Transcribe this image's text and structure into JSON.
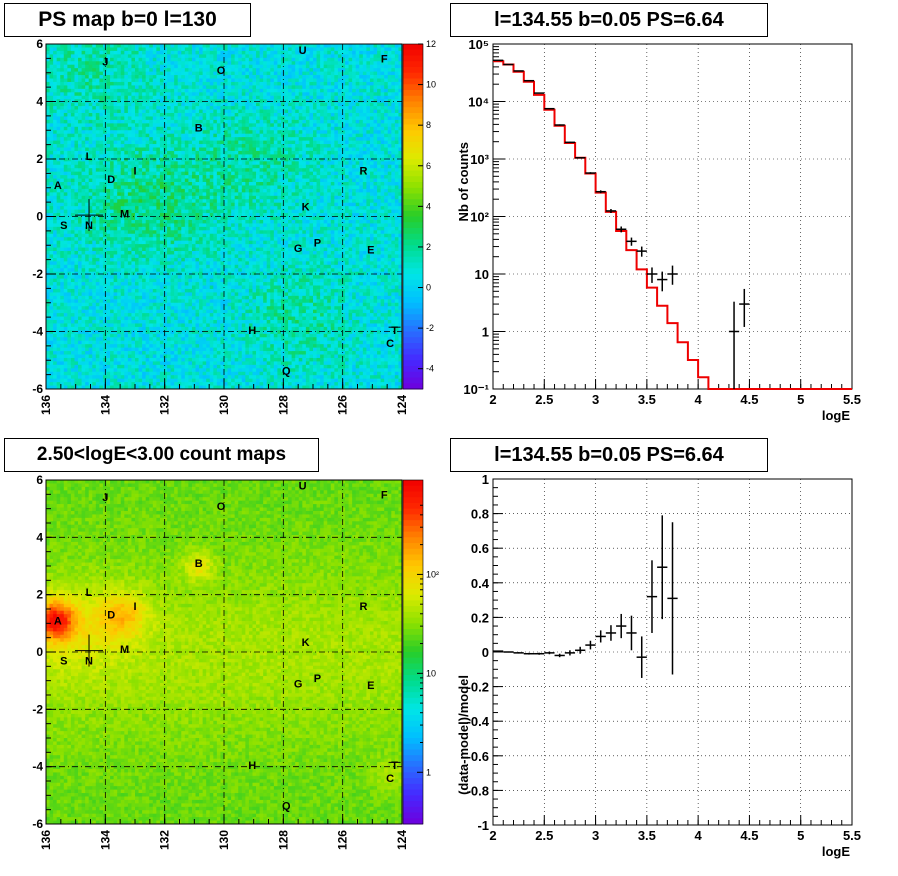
{
  "chart_data": [
    {
      "id": "ps_map",
      "type": "heatmap",
      "title": "PS map b=0 l=130",
      "x_ticks": [
        "136",
        "134",
        "132",
        "130",
        "128",
        "126",
        "124"
      ],
      "y_ticks": [
        "6",
        "4",
        "2",
        "0",
        "-2",
        "-4",
        "-6"
      ],
      "xlim": [
        136,
        124
      ],
      "ylim": [
        -6,
        6
      ],
      "colorbar_ticks": [
        "12",
        "10",
        "8",
        "6",
        "4",
        "2",
        "0",
        "-2",
        "-4"
      ],
      "colorbar_range": [
        -5,
        12
      ],
      "grid": true,
      "sources": [
        {
          "label": "J",
          "l": 134.0,
          "b": 5.4
        },
        {
          "label": "O",
          "l": 130.1,
          "b": 5.1
        },
        {
          "label": "U",
          "l": 127.35,
          "b": 5.8
        },
        {
          "label": "F",
          "l": 124.6,
          "b": 5.5
        },
        {
          "label": "B",
          "l": 130.85,
          "b": 3.1
        },
        {
          "label": "L",
          "l": 134.55,
          "b": 2.1
        },
        {
          "label": "R",
          "l": 125.3,
          "b": 1.6
        },
        {
          "label": "A",
          "l": 135.6,
          "b": 1.1
        },
        {
          "label": "D",
          "l": 133.8,
          "b": 1.3
        },
        {
          "label": "I",
          "l": 133.0,
          "b": 1.6
        },
        {
          "label": "K",
          "l": 127.25,
          "b": 0.35
        },
        {
          "label": "M",
          "l": 133.35,
          "b": 0.1
        },
        {
          "label": "S",
          "l": 135.4,
          "b": -0.3
        },
        {
          "label": "N",
          "l": 134.55,
          "b": -0.3
        },
        {
          "label": "P",
          "l": 126.85,
          "b": -0.9
        },
        {
          "label": "G",
          "l": 127.5,
          "b": -1.1
        },
        {
          "label": "E",
          "l": 125.05,
          "b": -1.15
        },
        {
          "label": "H",
          "l": 129.05,
          "b": -3.95
        },
        {
          "label": "T",
          "l": 124.25,
          "b": -3.95
        },
        {
          "label": "C",
          "l": 124.4,
          "b": -4.4
        },
        {
          "label": "Q",
          "l": 127.9,
          "b": -5.35
        }
      ]
    },
    {
      "id": "spectrum",
      "type": "line",
      "title": "l=134.55 b=0.05 PS=6.64",
      "xlabel": "logE",
      "ylabel": "Nb of counts",
      "log_y": true,
      "xlim": [
        2,
        5.5
      ],
      "ylim": [
        0.1,
        100000
      ],
      "x_ticks": [
        "2",
        "2.5",
        "3",
        "3.5",
        "4",
        "4.5",
        "5",
        "5.5"
      ],
      "y_ticks": [
        "10⁻¹",
        "1",
        "10",
        "10²",
        "10³",
        "10⁴",
        "10⁵"
      ],
      "grid": true,
      "series": [
        {
          "style": "histogram",
          "color": "#ee0000",
          "bin_edges": [
            2.0,
            2.1,
            2.2,
            2.3,
            2.4,
            2.5,
            2.6,
            2.7,
            2.8,
            2.9,
            3.0,
            3.1,
            3.2,
            3.3,
            3.4,
            3.5,
            3.6,
            3.7,
            3.8,
            3.9,
            4.0,
            4.1,
            4.2,
            4.3,
            4.4,
            4.5,
            4.6,
            4.7,
            4.8,
            4.9,
            5.0,
            5.1,
            5.2,
            5.3,
            5.4,
            5.5
          ],
          "values": [
            50000,
            44000,
            33000,
            22000,
            13000,
            7200,
            3800,
            1900,
            1050,
            560,
            260,
            120,
            56,
            26,
            12,
            5.8,
            2.8,
            1.4,
            0.65,
            0.32,
            0.16,
            0.1,
            0.1,
            0.1,
            0.1,
            0.1,
            0.1,
            0.1,
            0.1,
            0.1,
            0.1,
            0.1,
            0.1,
            0.1,
            0.1
          ]
        },
        {
          "style": "points",
          "color": "#000000",
          "points": [
            {
              "x": 2.05,
              "y": 52000,
              "lo": 51500,
              "hi": 52500
            },
            {
              "x": 2.15,
              "y": 44000,
              "lo": 43500,
              "hi": 44500
            },
            {
              "x": 2.25,
              "y": 34000,
              "lo": 33600,
              "hi": 34400
            },
            {
              "x": 2.35,
              "y": 23000,
              "lo": 22700,
              "hi": 23300
            },
            {
              "x": 2.45,
              "y": 14000,
              "lo": 13800,
              "hi": 14200
            },
            {
              "x": 2.55,
              "y": 7500,
              "lo": 7350,
              "hi": 7650
            },
            {
              "x": 2.65,
              "y": 3900,
              "lo": 3800,
              "hi": 4000
            },
            {
              "x": 2.75,
              "y": 1950,
              "lo": 1900,
              "hi": 2000
            },
            {
              "x": 2.85,
              "y": 1050,
              "lo": 1020,
              "hi": 1080
            },
            {
              "x": 2.95,
              "y": 570,
              "lo": 550,
              "hi": 590
            },
            {
              "x": 3.05,
              "y": 270,
              "lo": 255,
              "hi": 285
            },
            {
              "x": 3.15,
              "y": 125,
              "lo": 115,
              "hi": 135
            },
            {
              "x": 3.25,
              "y": 60,
              "lo": 53,
              "hi": 67
            },
            {
              "x": 3.35,
              "y": 37,
              "lo": 31,
              "hi": 43
            },
            {
              "x": 3.45,
              "y": 25,
              "lo": 20,
              "hi": 30
            },
            {
              "x": 3.55,
              "y": 10,
              "lo": 7,
              "hi": 13
            },
            {
              "x": 3.65,
              "y": 8,
              "lo": 5,
              "hi": 11
            },
            {
              "x": 3.75,
              "y": 10,
              "lo": 6.5,
              "hi": 14
            },
            {
              "x": 4.35,
              "y": 1,
              "lo": 0.1,
              "hi": 3.3
            },
            {
              "x": 4.45,
              "y": 3,
              "lo": 1.2,
              "hi": 5.5
            }
          ]
        }
      ]
    },
    {
      "id": "count_map",
      "type": "heatmap",
      "title": "2.50<logE<3.00 count maps",
      "x_ticks": [
        "136",
        "134",
        "132",
        "130",
        "128",
        "126",
        "124"
      ],
      "y_ticks": [
        "6",
        "4",
        "2",
        "0",
        "-2",
        "-4",
        "-6"
      ],
      "xlim": [
        136,
        124
      ],
      "ylim": [
        -6,
        6
      ],
      "colorbar_ticks": [
        "10²",
        "10",
        "1"
      ],
      "log_colorbar": true,
      "grid": true
    },
    {
      "id": "residuals",
      "type": "scatter",
      "title": "l=134.55 b=0.05 PS=6.64",
      "xlabel": "logE",
      "ylabel": "(data-model)/model",
      "xlim": [
        2,
        5.5
      ],
      "ylim": [
        -1,
        1
      ],
      "x_ticks": [
        "2",
        "2.5",
        "3",
        "3.5",
        "4",
        "4.5",
        "5",
        "5.5"
      ],
      "y_ticks": [
        "-1",
        "-0.8",
        "-0.6",
        "-0.4",
        "-0.2",
        "0",
        "0.2",
        "0.4",
        "0.6",
        "0.8",
        "1"
      ],
      "grid": true,
      "points": [
        {
          "x": 2.05,
          "y": 0.005,
          "err": 0.003
        },
        {
          "x": 2.15,
          "y": 0.0,
          "err": 0.003
        },
        {
          "x": 2.25,
          "y": -0.005,
          "err": 0.004
        },
        {
          "x": 2.35,
          "y": -0.01,
          "err": 0.005
        },
        {
          "x": 2.45,
          "y": -0.01,
          "err": 0.006
        },
        {
          "x": 2.55,
          "y": -0.005,
          "err": 0.008
        },
        {
          "x": 2.65,
          "y": -0.02,
          "err": 0.01
        },
        {
          "x": 2.75,
          "y": -0.005,
          "err": 0.015
        },
        {
          "x": 2.85,
          "y": 0.01,
          "err": 0.02
        },
        {
          "x": 2.95,
          "y": 0.04,
          "err": 0.025
        },
        {
          "x": 3.05,
          "y": 0.09,
          "err": 0.035
        },
        {
          "x": 3.15,
          "y": 0.11,
          "err": 0.045
        },
        {
          "x": 3.25,
          "y": 0.15,
          "err": 0.07
        },
        {
          "x": 3.35,
          "y": 0.11,
          "err": 0.1
        },
        {
          "x": 3.45,
          "y": -0.03,
          "err": 0.12
        },
        {
          "x": 3.55,
          "y": 0.32,
          "err": 0.21
        },
        {
          "x": 3.65,
          "y": 0.49,
          "err": 0.3
        },
        {
          "x": 3.75,
          "y": 0.31,
          "err": 0.44
        }
      ]
    }
  ]
}
